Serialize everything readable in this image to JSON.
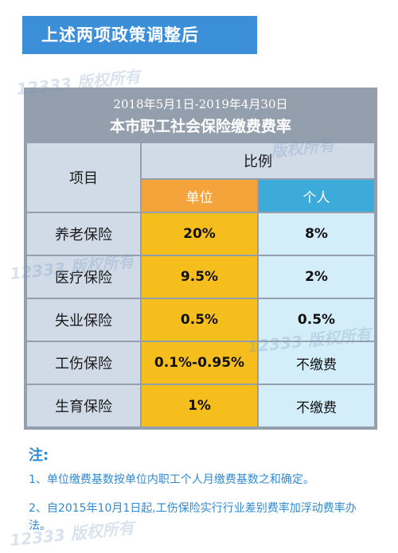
{
  "banner": {
    "title": "上述两项政策调整后"
  },
  "watermarks": [
    "12333 版权所有",
    "版权所有",
    "12333 版权所有",
    "12333 版权所有",
    "12333 版权所有"
  ],
  "table": {
    "date_range": "2018年5月1日-2019年4月30日",
    "title": "本市职工社会保险缴费费率",
    "header": {
      "item": "项目",
      "ratio": "比例",
      "unit": "单位",
      "person": "个人"
    },
    "rows": [
      {
        "name": "养老保险",
        "unit": "20%",
        "person": "8%"
      },
      {
        "name": "医疗保险",
        "unit": "9.5%",
        "person": "2%"
      },
      {
        "name": "失业保险",
        "unit": "0.5%",
        "person": "0.5%"
      },
      {
        "name": "工伤保险",
        "unit": "0.1%-0.95%",
        "person": "不缴费"
      },
      {
        "name": "生育保险",
        "unit": "1%",
        "person": "不缴费"
      }
    ]
  },
  "notes": {
    "title": "注:",
    "items": [
      "1、单位缴费基数按单位内职工个人月缴费基数之和确定。",
      "2、自2015年10月1日起,工伤保险实行行业差别费率加浮动费率办法。"
    ]
  },
  "colors": {
    "banner": "#3b8ed8",
    "frame": "#949fad",
    "header_unit": "#f4a43a",
    "header_person": "#3dabd9",
    "unit_cells": "#f6be1d",
    "person_cells": "#d4eef9",
    "label_cells": "#d1dbe8",
    "note_text": "#2f8ad0"
  }
}
